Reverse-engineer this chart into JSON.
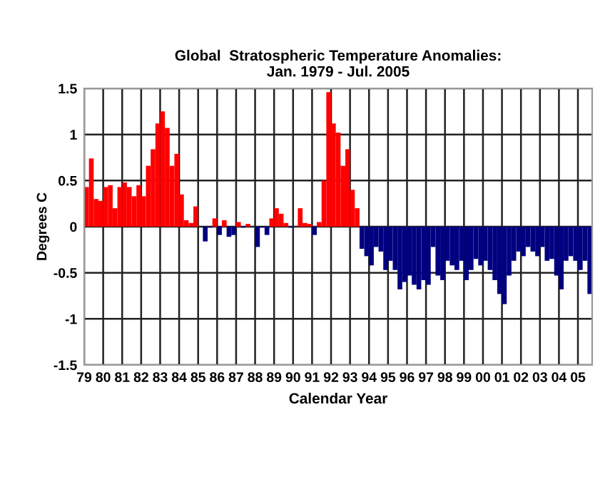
{
  "chart_data": {
    "type": "bar",
    "title": "Global  Stratospheric Temperature Anomalies:\nJan. 1979 - Jul. 2005",
    "xlabel": "Calendar Year",
    "ylabel": "Degrees C",
    "x": [
      1979.0,
      1979.25,
      1979.5,
      1979.75,
      1980.0,
      1980.25,
      1980.5,
      1980.75,
      1981.0,
      1981.25,
      1981.5,
      1981.75,
      1982.0,
      1982.25,
      1982.5,
      1982.75,
      1983.0,
      1983.25,
      1983.5,
      1983.75,
      1984.0,
      1984.25,
      1984.5,
      1984.75,
      1985.0,
      1985.25,
      1985.5,
      1985.75,
      1986.0,
      1986.25,
      1986.5,
      1986.75,
      1987.0,
      1987.25,
      1987.5,
      1987.75,
      1988.0,
      1988.25,
      1988.5,
      1988.75,
      1989.0,
      1989.25,
      1989.5,
      1989.75,
      1990.0,
      1990.25,
      1990.5,
      1990.75,
      1991.0,
      1991.25,
      1991.5,
      1991.75,
      1992.0,
      1992.25,
      1992.5,
      1992.75,
      1993.0,
      1993.25,
      1993.5,
      1993.75,
      1994.0,
      1994.25,
      1994.5,
      1994.75,
      1995.0,
      1995.25,
      1995.5,
      1995.75,
      1996.0,
      1996.25,
      1996.5,
      1996.75,
      1997.0,
      1997.25,
      1997.5,
      1997.75,
      1998.0,
      1998.25,
      1998.5,
      1998.75,
      1999.0,
      1999.25,
      1999.5,
      1999.75,
      2000.0,
      2000.25,
      2000.5,
      2000.75,
      2001.0,
      2001.25,
      2001.5,
      2001.75,
      2002.0,
      2002.25,
      2002.5,
      2002.75,
      2003.0,
      2003.25,
      2003.5,
      2003.75,
      2004.0,
      2004.25,
      2004.5,
      2004.75,
      2005.0,
      2005.25,
      2005.5
    ],
    "values": [
      0.43,
      0.74,
      0.3,
      0.28,
      0.43,
      0.45,
      0.2,
      0.43,
      0.48,
      0.43,
      0.33,
      0.45,
      0.33,
      0.66,
      0.84,
      1.12,
      1.25,
      1.07,
      0.66,
      0.79,
      0.35,
      0.07,
      0.04,
      0.22,
      0,
      -0.16,
      -0.01,
      0.09,
      -0.09,
      0.07,
      -0.11,
      -0.09,
      0.05,
      -0.01,
      0.03,
      0,
      -0.22,
      -0.01,
      -0.09,
      0.09,
      0.2,
      0.14,
      0.04,
      -0.01,
      0,
      0.2,
      0.04,
      0.03,
      -0.09,
      0.05,
      0.5,
      1.46,
      1.12,
      1.02,
      0.66,
      0.84,
      0.4,
      0.2,
      -0.24,
      -0.32,
      -0.42,
      -0.22,
      -0.27,
      -0.47,
      -0.37,
      -0.47,
      -0.68,
      -0.6,
      -0.53,
      -0.63,
      -0.68,
      -0.58,
      -0.63,
      -0.22,
      -0.53,
      -0.58,
      -0.37,
      -0.42,
      -0.47,
      -0.37,
      -0.58,
      -0.47,
      -0.35,
      -0.42,
      -0.37,
      -0.47,
      -0.58,
      -0.73,
      -0.84,
      -0.53,
      -0.37,
      -0.27,
      -0.32,
      -0.22,
      -0.27,
      -0.32,
      -0.22,
      -0.37,
      -0.35,
      -0.53,
      -0.68,
      -0.37,
      -0.32,
      -0.37,
      -0.47,
      -0.37,
      -0.73
    ],
    "colors": [
      "#ff0000",
      "#ff0000",
      "#ff0000",
      "#ff0000",
      "#ff0000",
      "#ff0000",
      "#ff0000",
      "#ff0000",
      "#ff0000",
      "#ff0000",
      "#ff0000",
      "#ff0000",
      "#ff0000",
      "#ff0000",
      "#ff0000",
      "#ff0000",
      "#ff0000",
      "#ff0000",
      "#ff0000",
      "#ff0000",
      "#ff0000",
      "#ff0000",
      "#ff0000",
      "#ff0000",
      "#ff0000",
      "#000080",
      "#000080",
      "#ff0000",
      "#000080",
      "#ff0000",
      "#000080",
      "#000080",
      "#ff0000",
      "#000080",
      "#ff0000",
      "#ff0000",
      "#000080",
      "#000080",
      "#000080",
      "#ff0000",
      "#ff0000",
      "#ff0000",
      "#ff0000",
      "#000080",
      "#ff0000",
      "#ff0000",
      "#ff0000",
      "#ff0000",
      "#000080",
      "#ff0000",
      "#ff0000",
      "#ff0000",
      "#ff0000",
      "#ff0000",
      "#ff0000",
      "#ff0000",
      "#ff0000",
      "#ff0000",
      "#000080",
      "#000080",
      "#000080",
      "#000080",
      "#000080",
      "#000080",
      "#000080",
      "#000080",
      "#000080",
      "#000080",
      "#000080",
      "#000080",
      "#000080",
      "#000080",
      "#000080",
      "#000080",
      "#000080",
      "#000080",
      "#000080",
      "#000080",
      "#000080",
      "#000080",
      "#000080",
      "#000080",
      "#000080",
      "#000080",
      "#000080",
      "#000080",
      "#000080",
      "#000080",
      "#000080",
      "#000080",
      "#000080",
      "#000080",
      "#000080",
      "#000080",
      "#000080",
      "#000080",
      "#000080",
      "#000080",
      "#000080",
      "#000080",
      "#000080",
      "#000080",
      "#000080",
      "#000080",
      "#000080",
      "#000080",
      "#000080"
    ],
    "xlim": [
      1979,
      2005.75
    ],
    "ylim": [
      -1.5,
      1.5
    ],
    "yticks": [
      -1.5,
      -1,
      -0.5,
      0,
      0.5,
      1,
      1.5
    ],
    "xticks": [
      {
        "value": 1979,
        "label": "79"
      },
      {
        "value": 1980,
        "label": "80"
      },
      {
        "value": 1981,
        "label": "81"
      },
      {
        "value": 1982,
        "label": "82"
      },
      {
        "value": 1983,
        "label": "83"
      },
      {
        "value": 1984,
        "label": "84"
      },
      {
        "value": 1985,
        "label": "85"
      },
      {
        "value": 1986,
        "label": "86"
      },
      {
        "value": 1987,
        "label": "87"
      },
      {
        "value": 1988,
        "label": "88"
      },
      {
        "value": 1989,
        "label": "89"
      },
      {
        "value": 1990,
        "label": "90"
      },
      {
        "value": 1991,
        "label": "91"
      },
      {
        "value": 1992,
        "label": "92"
      },
      {
        "value": 1993,
        "label": "93"
      },
      {
        "value": 1994,
        "label": "94"
      },
      {
        "value": 1995,
        "label": "95"
      },
      {
        "value": 1996,
        "label": "96"
      },
      {
        "value": 1997,
        "label": "97"
      },
      {
        "value": 1998,
        "label": "98"
      },
      {
        "value": 1999,
        "label": "99"
      },
      {
        "value": 2000,
        "label": "00"
      },
      {
        "value": 2001,
        "label": "01"
      },
      {
        "value": 2002,
        "label": "02"
      },
      {
        "value": 2003,
        "label": "03"
      },
      {
        "value": 2004,
        "label": "04"
      },
      {
        "value": 2005,
        "label": "05"
      }
    ],
    "grid": true
  }
}
